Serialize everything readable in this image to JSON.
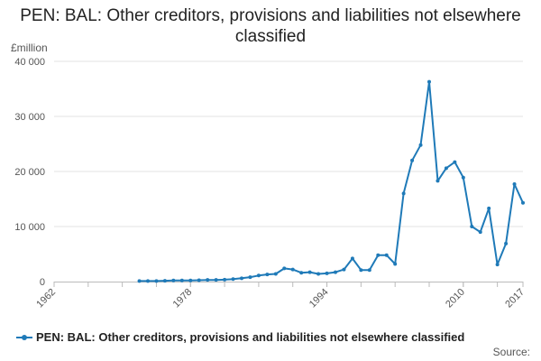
{
  "chart_data": {
    "type": "line",
    "title": "PEN: BAL: Other creditors, provisions and liabilities not elsewhere classified",
    "unit_label": "£million",
    "source_label": "Source:",
    "ylim": [
      0,
      40000
    ],
    "xlim": [
      1962,
      2017
    ],
    "y_ticks": [
      {
        "value": 0,
        "label": "0"
      },
      {
        "value": 10000,
        "label": "10 000"
      },
      {
        "value": 20000,
        "label": "20 000"
      },
      {
        "value": 30000,
        "label": "30 000"
      },
      {
        "value": 40000,
        "label": "40 000"
      }
    ],
    "x_ticks": [
      {
        "value": 1962,
        "label": "1962"
      },
      {
        "value": 1978,
        "label": "1978"
      },
      {
        "value": 1994,
        "label": "1994"
      },
      {
        "value": 2010,
        "label": "2010"
      },
      {
        "value": 2017,
        "label": "2017"
      }
    ],
    "grid": "horizontal",
    "legend_position": "bottom",
    "color": "#1f7ab8",
    "series": [
      {
        "name": "PEN: BAL: Other creditors, provisions and liabilities not elsewhere classified",
        "x": [
          1972,
          1973,
          1974,
          1975,
          1976,
          1977,
          1978,
          1979,
          1980,
          1981,
          1982,
          1983,
          1984,
          1985,
          1986,
          1987,
          1988,
          1989,
          1990,
          1991,
          1992,
          1993,
          1994,
          1995,
          1996,
          1997,
          1998,
          1999,
          2000,
          2001,
          2002,
          2003,
          2004,
          2005,
          2006,
          2007,
          2008,
          2009,
          2010,
          2011,
          2012,
          2013,
          2014,
          2015,
          2016,
          2017
        ],
        "values": [
          100,
          100,
          100,
          150,
          200,
          200,
          200,
          250,
          300,
          300,
          350,
          450,
          600,
          800,
          1100,
          1300,
          1400,
          2400,
          2200,
          1600,
          1700,
          1400,
          1500,
          1700,
          2200,
          4200,
          2100,
          2100,
          4800,
          4800,
          3200,
          16000,
          22000,
          24800,
          36300,
          18300,
          20600,
          21700,
          18900,
          10000,
          9000,
          13300,
          3100,
          6900,
          17700,
          14300
        ]
      }
    ]
  }
}
